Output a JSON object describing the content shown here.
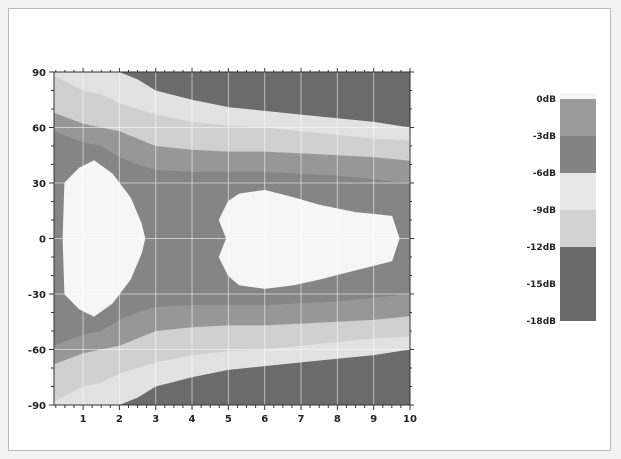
{
  "chart_data": {
    "type": "contour",
    "title": "",
    "xlabel": "",
    "ylabel": "",
    "xlim": [
      0.2,
      10
    ],
    "ylim": [
      -90,
      90
    ],
    "x_ticks": [
      "1",
      "2",
      "3",
      "4",
      "5",
      "6",
      "7",
      "8",
      "9",
      "10"
    ],
    "y_ticks": [
      "90",
      "60",
      "30",
      "0",
      "-30",
      "-60",
      "-90"
    ],
    "grid": true,
    "legend_position": "right",
    "legend": [
      {
        "label": "0dB",
        "color": "#f4f4f4"
      },
      {
        "label": "-3dB",
        "color": "#9a9a9a"
      },
      {
        "label": "-6dB",
        "color": "#838383"
      },
      {
        "label": "-9dB",
        "color": "#e7e7e7"
      },
      {
        "label": "-12dB",
        "color": "#d2d2d2"
      },
      {
        "label": "-15dB",
        "color": "#6a6a6a"
      },
      {
        "label": "-18dB",
        "color": "#6a6a6a"
      }
    ],
    "bands": [
      {
        "name": "outer",
        "color": "#e2e2e2",
        "upper": [
          [
            0.2,
            90
          ],
          [
            1.5,
            90
          ],
          [
            2.0,
            90
          ],
          [
            2.5,
            86
          ],
          [
            3,
            80
          ],
          [
            4,
            75
          ],
          [
            5,
            71
          ],
          [
            6,
            69
          ],
          [
            7,
            67
          ],
          [
            8,
            65
          ],
          [
            9,
            63
          ],
          [
            10,
            60
          ]
        ],
        "lower": [
          [
            0.2,
            -90
          ],
          [
            1.5,
            -90
          ],
          [
            2.0,
            -90
          ],
          [
            2.5,
            -86
          ],
          [
            3,
            -80
          ],
          [
            4,
            -75
          ],
          [
            5,
            -71
          ],
          [
            6,
            -69
          ],
          [
            7,
            -67
          ],
          [
            8,
            -65
          ],
          [
            9,
            -63
          ],
          [
            10,
            -60
          ]
        ]
      },
      {
        "name": "mid-light",
        "color": "#d0d0d0",
        "upper": [
          [
            0.2,
            88
          ],
          [
            1,
            80
          ],
          [
            1.5,
            78
          ],
          [
            2,
            73
          ],
          [
            2.5,
            70
          ],
          [
            3,
            67
          ],
          [
            4,
            63
          ],
          [
            5,
            61
          ],
          [
            6,
            60
          ],
          [
            7,
            58
          ],
          [
            8,
            56
          ],
          [
            9,
            54
          ],
          [
            10,
            53
          ]
        ],
        "lower": [
          [
            0.2,
            -88
          ],
          [
            1,
            -80
          ],
          [
            1.5,
            -78
          ],
          [
            2,
            -73
          ],
          [
            2.5,
            -70
          ],
          [
            3,
            -67
          ],
          [
            4,
            -63
          ],
          [
            5,
            -61
          ],
          [
            6,
            -60
          ],
          [
            7,
            -58
          ],
          [
            8,
            -56
          ],
          [
            9,
            -54
          ],
          [
            10,
            -53
          ]
        ]
      },
      {
        "name": "mid",
        "color": "#979797",
        "upper": [
          [
            0.2,
            68
          ],
          [
            1,
            62
          ],
          [
            1.5,
            60
          ],
          [
            2,
            58
          ],
          [
            2.5,
            54
          ],
          [
            3,
            50
          ],
          [
            4,
            48
          ],
          [
            5,
            47
          ],
          [
            6,
            47
          ],
          [
            7,
            46
          ],
          [
            8,
            45
          ],
          [
            9,
            44
          ],
          [
            10,
            42
          ]
        ],
        "lower": [
          [
            0.2,
            -68
          ],
          [
            1,
            -62
          ],
          [
            1.5,
            -60
          ],
          [
            2,
            -58
          ],
          [
            2.5,
            -54
          ],
          [
            3,
            -50
          ],
          [
            4,
            -48
          ],
          [
            5,
            -47
          ],
          [
            6,
            -47
          ],
          [
            7,
            -46
          ],
          [
            8,
            -45
          ],
          [
            9,
            -44
          ],
          [
            10,
            -42
          ]
        ]
      },
      {
        "name": "inner",
        "color": "#858585",
        "upper": [
          [
            0.2,
            58
          ],
          [
            1,
            52
          ],
          [
            1.5,
            50
          ],
          [
            2,
            44
          ],
          [
            2.5,
            40
          ],
          [
            3,
            37
          ],
          [
            4,
            36
          ],
          [
            5,
            36
          ],
          [
            6,
            36
          ],
          [
            7,
            35
          ],
          [
            8,
            34
          ],
          [
            9,
            32
          ],
          [
            10,
            30
          ]
        ],
        "lower": [
          [
            0.2,
            -58
          ],
          [
            1,
            -52
          ],
          [
            1.5,
            -50
          ],
          [
            2,
            -44
          ],
          [
            2.5,
            -40
          ],
          [
            3,
            -37
          ],
          [
            4,
            -36
          ],
          [
            5,
            -36
          ],
          [
            6,
            -36
          ],
          [
            7,
            -35
          ],
          [
            8,
            -34
          ],
          [
            9,
            -32
          ],
          [
            10,
            -30
          ]
        ]
      }
    ],
    "regions": [
      {
        "name": "low-freq-lobe",
        "color": "#f6f6f6",
        "points": [
          [
            0.45,
            0
          ],
          [
            0.5,
            30
          ],
          [
            0.9,
            38
          ],
          [
            1.3,
            42
          ],
          [
            1.8,
            35
          ],
          [
            2.3,
            22
          ],
          [
            2.6,
            8
          ],
          [
            2.7,
            0
          ],
          [
            2.6,
            -8
          ],
          [
            2.3,
            -22
          ],
          [
            1.8,
            -35
          ],
          [
            1.3,
            -42
          ],
          [
            0.9,
            -38
          ],
          [
            0.5,
            -30
          ]
        ]
      },
      {
        "name": "high-freq-lobe",
        "color": "#f6f6f6",
        "points": [
          [
            4.75,
            10
          ],
          [
            5.0,
            20
          ],
          [
            5.3,
            24
          ],
          [
            6,
            26
          ],
          [
            6.8,
            22
          ],
          [
            7.5,
            18
          ],
          [
            8.5,
            14
          ],
          [
            9.5,
            12
          ],
          [
            9.7,
            0
          ],
          [
            9.5,
            -12
          ],
          [
            8.5,
            -17
          ],
          [
            7.5,
            -22
          ],
          [
            6.8,
            -25
          ],
          [
            6,
            -27
          ],
          [
            5.3,
            -25
          ],
          [
            5.0,
            -20
          ],
          [
            4.75,
            -10
          ],
          [
            4.95,
            0
          ]
        ]
      }
    ],
    "background_color": "#6b6b6b"
  }
}
